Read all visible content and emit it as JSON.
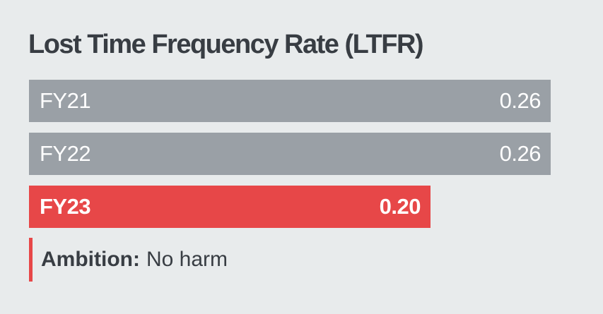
{
  "chart_data": {
    "type": "bar",
    "orientation": "horizontal",
    "title": "Lost Time Frequency Rate (LTFR)",
    "categories": [
      "FY21",
      "FY22",
      "FY23"
    ],
    "values": [
      0.26,
      0.26,
      0.2
    ],
    "value_labels": [
      "0.26",
      "0.26",
      "0.20"
    ],
    "xlim": [
      0,
      0.26
    ],
    "highlight_index": 2,
    "legend": "none",
    "grid": false,
    "annotation": {
      "label": "Ambition:",
      "text": "No harm"
    }
  },
  "colors": {
    "background": "#e8ebec",
    "bar_gray": "#9aa0a6",
    "accent_red": "#e74748",
    "ink": "#383d43",
    "bar_text": "#ffffff"
  }
}
